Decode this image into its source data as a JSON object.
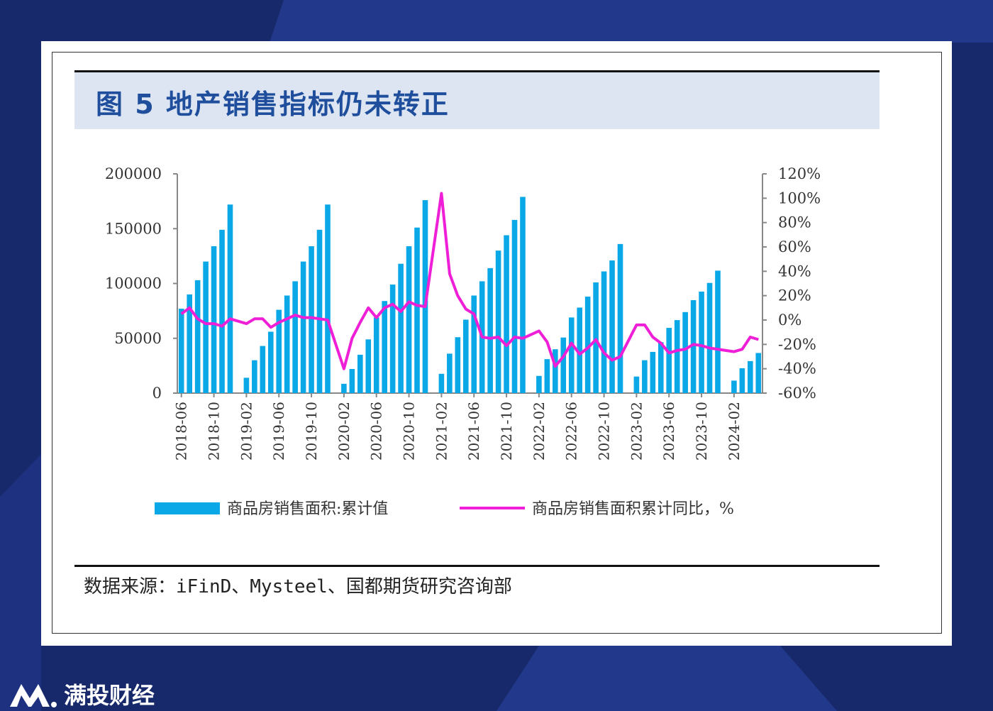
{
  "title": "图 5 地产销售指标仍未转正",
  "source": "数据来源：iFinD、Mysteel、国都期货研究咨询部",
  "brand": "满投财经",
  "colors": {
    "bar": "#0aa8e6",
    "line": "#ee1fd6",
    "title": "#1f4e9c",
    "background": "#17296a",
    "title_band": "#dde5f2"
  },
  "chart_data": {
    "type": "bar+line",
    "title": "",
    "x_tick_labels": [
      "2018-06",
      "2018-10",
      "2019-02",
      "2019-06",
      "2019-10",
      "2020-02",
      "2020-06",
      "2020-10",
      "2021-02",
      "2021-06",
      "2021-10",
      "2022-02",
      "2022-06",
      "2022-10",
      "2023-02",
      "2023-06",
      "2023-10",
      "2024-02"
    ],
    "x": [
      "2018-06",
      "2018-07",
      "2018-08",
      "2018-09",
      "2018-10",
      "2018-11",
      "2018-12",
      "2019-01",
      "2019-02",
      "2019-03",
      "2019-04",
      "2019-05",
      "2019-06",
      "2019-07",
      "2019-08",
      "2019-09",
      "2019-10",
      "2019-11",
      "2019-12",
      "2020-01",
      "2020-02",
      "2020-03",
      "2020-04",
      "2020-05",
      "2020-06",
      "2020-07",
      "2020-08",
      "2020-09",
      "2020-10",
      "2020-11",
      "2020-12",
      "2021-01",
      "2021-02",
      "2021-03",
      "2021-04",
      "2021-05",
      "2021-06",
      "2021-07",
      "2021-08",
      "2021-09",
      "2021-10",
      "2021-11",
      "2021-12",
      "2022-01",
      "2022-02",
      "2022-03",
      "2022-04",
      "2022-05",
      "2022-06",
      "2022-07",
      "2022-08",
      "2022-09",
      "2022-10",
      "2022-11",
      "2022-12",
      "2023-01",
      "2023-02",
      "2023-03",
      "2023-04",
      "2023-05",
      "2023-06",
      "2023-07",
      "2023-08",
      "2023-09",
      "2023-10",
      "2023-11",
      "2023-12",
      "2024-01",
      "2024-02",
      "2024-03",
      "2024-04",
      "2024-05"
    ],
    "series": [
      {
        "name": "商品房销售面积:累计值",
        "type": "bar",
        "axis": "left",
        "values": [
          77000,
          90000,
          103000,
          120000,
          134000,
          149000,
          172000,
          null,
          14000,
          30000,
          43000,
          56000,
          76000,
          89000,
          102000,
          120000,
          134000,
          149000,
          172000,
          null,
          8500,
          22000,
          35000,
          49000,
          69000,
          84000,
          99000,
          118000,
          134000,
          151000,
          176000,
          null,
          17600,
          36000,
          51000,
          67000,
          89000,
          102000,
          114000,
          130000,
          144000,
          158000,
          179000,
          null,
          15700,
          31000,
          40000,
          50700,
          69000,
          78000,
          88000,
          101000,
          111000,
          121000,
          136000,
          null,
          15100,
          30000,
          37600,
          46400,
          59500,
          66600,
          73900,
          84800,
          92600,
          100500,
          111700,
          null,
          11400,
          22700,
          29200,
          36600
        ]
      },
      {
        "name": "商品房销售面积累计同比，%",
        "type": "line",
        "axis": "right",
        "values": [
          5,
          10,
          1,
          -3,
          -3,
          -5,
          1,
          null,
          -3,
          1,
          1,
          -6,
          -2,
          1,
          4,
          2,
          2,
          1,
          0,
          null,
          -40,
          -15,
          -2,
          10,
          2,
          10,
          13,
          7,
          15,
          12,
          11,
          null,
          104,
          38,
          20,
          9,
          5,
          -14,
          -15,
          -14,
          -21,
          -14,
          -15,
          null,
          -9,
          -18,
          -38,
          -30,
          -19,
          -28,
          -23,
          -16,
          -27,
          -33,
          -30,
          null,
          -4,
          -4,
          -14,
          -19,
          -27,
          -25,
          -24,
          -20,
          -21,
          -23,
          -24,
          null,
          -26,
          -24,
          -14,
          -16
        ]
      }
    ],
    "left_axis": {
      "range": [
        0,
        200000
      ],
      "ticks": [
        "0",
        "50000",
        "100000",
        "150000",
        "200000"
      ]
    },
    "right_axis": {
      "range": [
        -60,
        120
      ],
      "ticks": [
        "-60%",
        "-40%",
        "-20%",
        "0%",
        "20%",
        "40%",
        "60%",
        "80%",
        "100%",
        "120%"
      ]
    },
    "grid": false,
    "legend_placement": "bottom"
  }
}
